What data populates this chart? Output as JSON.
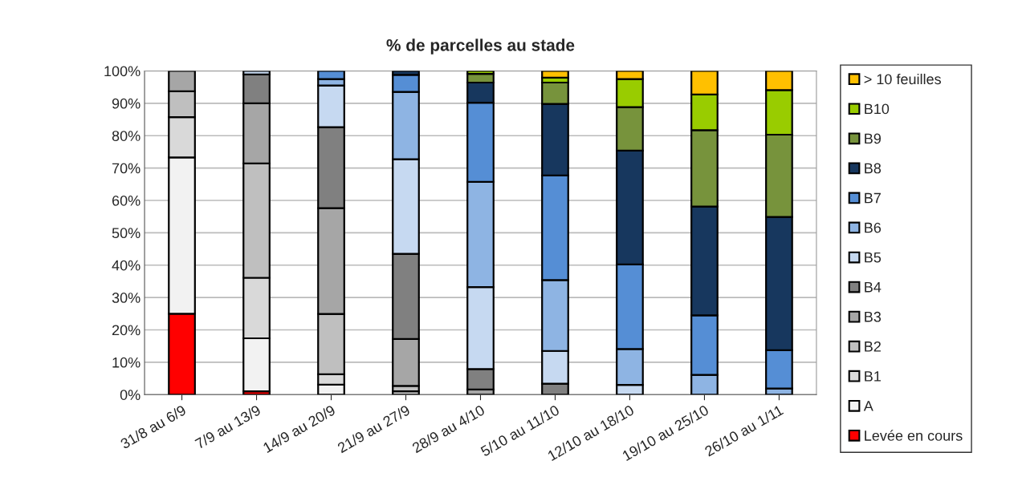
{
  "chart_data": {
    "type": "bar",
    "title": "% de parcelles au stade",
    "stacked": true,
    "categories": [
      "31/8 au 6/9",
      "7/9 au 13/9",
      "14/9 au 20/9",
      "21/9 au 27/9",
      "28/9 au 4/10",
      "5/10 au 11/10",
      "12/10 au 18/10",
      "19/10 au 25/10",
      "26/10 au 1/11"
    ],
    "series": [
      {
        "name": "Levée en cours",
        "color": "#ff0000",
        "values": [
          25,
          1,
          null,
          null,
          null,
          null,
          null,
          null,
          null
        ]
      },
      {
        "name": "A",
        "color": "#f2f2f2",
        "values": [
          48.3,
          16.4,
          3.1,
          null,
          null,
          null,
          null,
          null,
          null
        ]
      },
      {
        "name": "B1",
        "color": "#d9d9d9",
        "values": [
          12.4,
          18.7,
          3.2,
          1,
          null,
          null,
          null,
          null,
          null
        ]
      },
      {
        "name": "B2",
        "color": "#bfbfbf",
        "values": [
          8,
          35.3,
          18.6,
          1.7,
          null,
          null,
          null,
          null,
          null
        ]
      },
      {
        "name": "B3",
        "color": "#a6a6a6",
        "values": [
          6.3,
          18.6,
          32.7,
          14.5,
          1.6,
          null,
          null,
          null,
          null
        ]
      },
      {
        "name": "B4",
        "color": "#808080",
        "values": [
          null,
          8.9,
          25,
          26.3,
          6.3,
          3.4,
          null,
          null,
          null
        ]
      },
      {
        "name": "B5",
        "color": "#c6d9f1",
        "values": [
          null,
          1.1,
          12.9,
          29.2,
          25.3,
          10.1,
          3,
          null,
          null
        ]
      },
      {
        "name": "B6",
        "color": "#8eb4e3",
        "values": [
          null,
          null,
          2,
          20.8,
          32.5,
          21.9,
          11.1,
          6.1,
          1.9
        ]
      },
      {
        "name": "B7",
        "color": "#558ed5",
        "values": [
          null,
          null,
          2.5,
          5.3,
          24.5,
          32.3,
          26.1,
          18.4,
          11.8
        ]
      },
      {
        "name": "B8",
        "color": "#17375e",
        "values": [
          null,
          null,
          null,
          1.2,
          6.2,
          22.1,
          35.2,
          33.6,
          41.2
        ]
      },
      {
        "name": "B9",
        "color": "#77933c",
        "values": [
          null,
          null,
          null,
          null,
          2.7,
          6.6,
          13.4,
          23.6,
          25.4
        ]
      },
      {
        "name": "B10",
        "color": "#99cc00",
        "values": [
          null,
          null,
          null,
          null,
          0.9,
          1.5,
          8.7,
          11,
          13.8
        ]
      },
      {
        "name": "> 10 feuilles",
        "color": "#ffc000",
        "values": [
          null,
          null,
          null,
          null,
          null,
          2.1,
          2.5,
          7.3,
          5.9
        ]
      }
    ],
    "ylim": [
      0,
      100
    ],
    "yticks": [
      {
        "value": 0,
        "label": "0%"
      },
      {
        "value": 10,
        "label": "10%"
      },
      {
        "value": 20,
        "label": "20%"
      },
      {
        "value": 30,
        "label": "30%"
      },
      {
        "value": 40,
        "label": "40%"
      },
      {
        "value": 50,
        "label": "50%"
      },
      {
        "value": 60,
        "label": "60%"
      },
      {
        "value": 70,
        "label": "70%"
      },
      {
        "value": 80,
        "label": "80%"
      },
      {
        "value": 90,
        "label": "90%"
      },
      {
        "value": 100,
        "label": "100%"
      }
    ],
    "grid": "y",
    "legend": "right"
  }
}
